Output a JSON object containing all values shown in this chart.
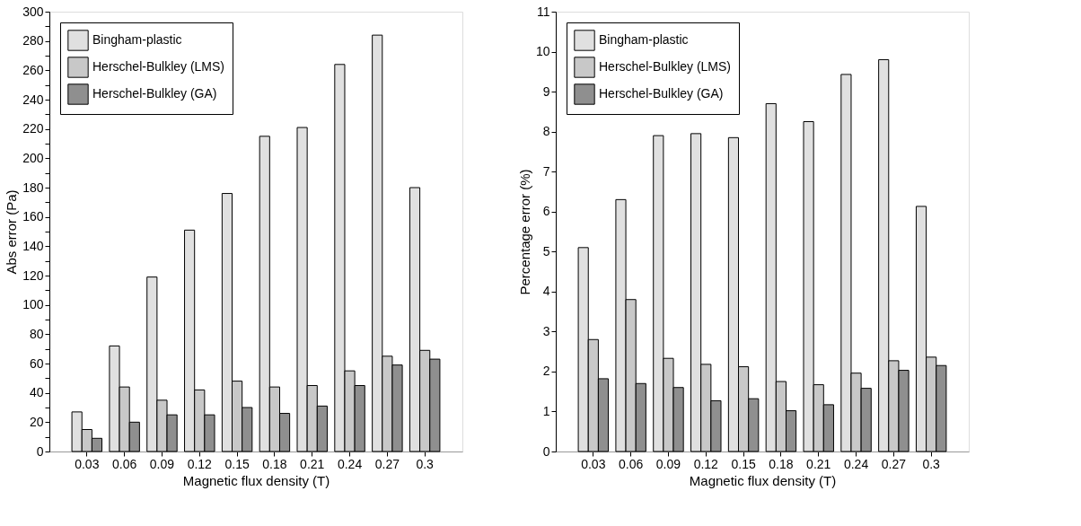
{
  "chart_data": [
    {
      "type": "bar",
      "xlabel": "Magnetic flux density (T)",
      "ylabel": "Abs error (Pa)",
      "categories": [
        "0.03",
        "0.06",
        "0.09",
        "0.12",
        "0.15",
        "0.18",
        "0.21",
        "0.24",
        "0.27",
        "0.3"
      ],
      "series": [
        {
          "name": "Bingham-plastic",
          "color": "#e0e0e0",
          "values": [
            27,
            72,
            119,
            151,
            176,
            215,
            221,
            264,
            284,
            180
          ]
        },
        {
          "name": "Herschel-Bulkley (LMS)",
          "color": "#c8c8c8",
          "values": [
            15,
            44,
            35,
            42,
            48,
            44,
            45,
            55,
            65,
            69
          ]
        },
        {
          "name": "Herschel-Bulkley (GA)",
          "color": "#8f8f8f",
          "values": [
            9,
            20,
            25,
            25,
            30,
            26,
            31,
            45,
            59,
            63
          ]
        }
      ],
      "ylim": [
        0,
        300
      ],
      "yticks": [
        0,
        {
          "value": 10,
          "label": null
        },
        20,
        {
          "value": 30,
          "label": null
        },
        40,
        {
          "value": 50,
          "label": null
        },
        60,
        {
          "value": 70,
          "label": null
        },
        80,
        {
          "value": 90,
          "label": null
        },
        100,
        {
          "value": 110,
          "label": null
        },
        120,
        {
          "value": 130,
          "label": null
        },
        140,
        {
          "value": 150,
          "label": null
        },
        160,
        {
          "value": 170,
          "label": null
        },
        180,
        {
          "value": 190,
          "label": null
        },
        200,
        {
          "value": 210,
          "label": null
        },
        220,
        {
          "value": 230,
          "label": null
        },
        240,
        {
          "value": 250,
          "label": null
        },
        260,
        {
          "value": 270,
          "label": null
        },
        280,
        {
          "value": 290,
          "label": null
        },
        300
      ],
      "grid": false,
      "legend": "top left"
    },
    {
      "type": "bar",
      "xlabel": "Magnetic flux density (T)",
      "ylabel": "Percentage error (%)",
      "categories": [
        "0.03",
        "0.06",
        "0.09",
        "0.12",
        "0.15",
        "0.18",
        "0.21",
        "0.24",
        "0.27",
        "0.3"
      ],
      "series": [
        {
          "name": "Bingham-plastic",
          "color": "#e0e0e0",
          "values": [
            5.1,
            6.3,
            7.9,
            7.95,
            7.85,
            8.7,
            8.25,
            9.43,
            9.8,
            6.13
          ]
        },
        {
          "name": "Herschel-Bulkley (LMS)",
          "color": "#c8c8c8",
          "values": [
            2.8,
            3.8,
            2.33,
            2.18,
            2.12,
            1.75,
            1.67,
            1.96,
            2.27,
            2.36
          ]
        },
        {
          "name": "Herschel-Bulkley (GA)",
          "color": "#8f8f8f",
          "values": [
            1.82,
            1.7,
            1.6,
            1.27,
            1.32,
            1.02,
            1.17,
            1.58,
            2.03,
            2.15
          ]
        }
      ],
      "ylim": [
        0,
        11
      ],
      "yticks": [
        0,
        1,
        2,
        3,
        4,
        5,
        6,
        7,
        8,
        9,
        10,
        11
      ],
      "grid": false,
      "legend": "top left"
    }
  ]
}
